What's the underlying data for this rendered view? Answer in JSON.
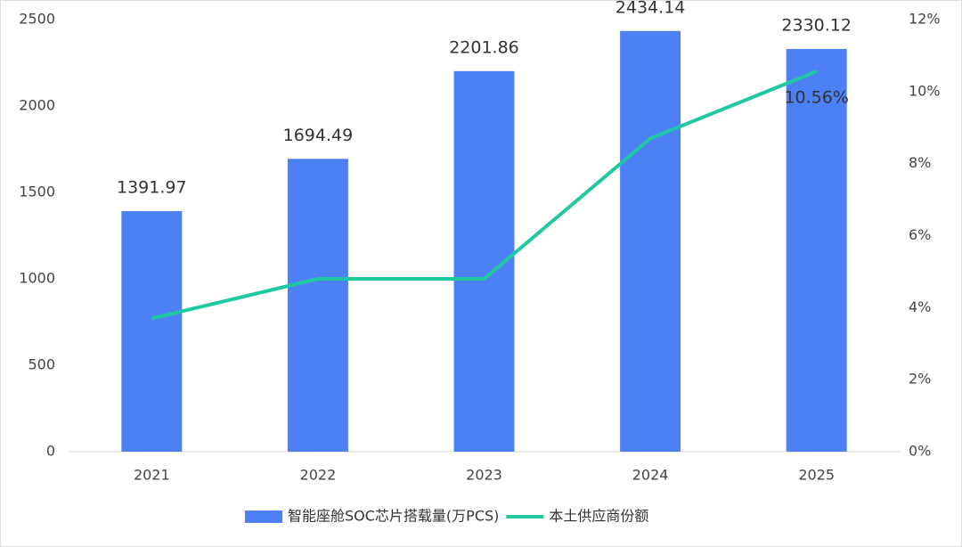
{
  "chart_data": {
    "type": "combo",
    "categories": [
      "2021",
      "2022",
      "2023",
      "2024",
      "2025"
    ],
    "series": [
      {
        "name": "智能座舱SOC芯片搭载量(万PCS)",
        "type": "bar",
        "color": "#4e80f5",
        "values": [
          1391.97,
          1694.49,
          2201.86,
          2434.14,
          2330.12
        ]
      },
      {
        "name": "本土供应商份额",
        "type": "line",
        "axis": "y2",
        "color": "#1ec9a0",
        "values": [
          3.7,
          4.8,
          4.8,
          8.7,
          10.56
        ],
        "value_labels": [
          null,
          null,
          null,
          null,
          "10.56%"
        ]
      }
    ],
    "ylim": [
      0,
      2500
    ],
    "yticks": [
      0,
      500,
      1000,
      1500,
      2000,
      2500
    ],
    "y2lim": [
      0,
      12
    ],
    "y2ticks": [
      {
        "value": 0,
        "label": "0%"
      },
      {
        "value": 2,
        "label": "2%"
      },
      {
        "value": 4,
        "label": "4%"
      },
      {
        "value": 6,
        "label": "6%"
      },
      {
        "value": 8,
        "label": "8%"
      },
      {
        "value": 10,
        "label": "10%"
      },
      {
        "value": 12,
        "label": "12%"
      }
    ],
    "legend": "bottom"
  }
}
